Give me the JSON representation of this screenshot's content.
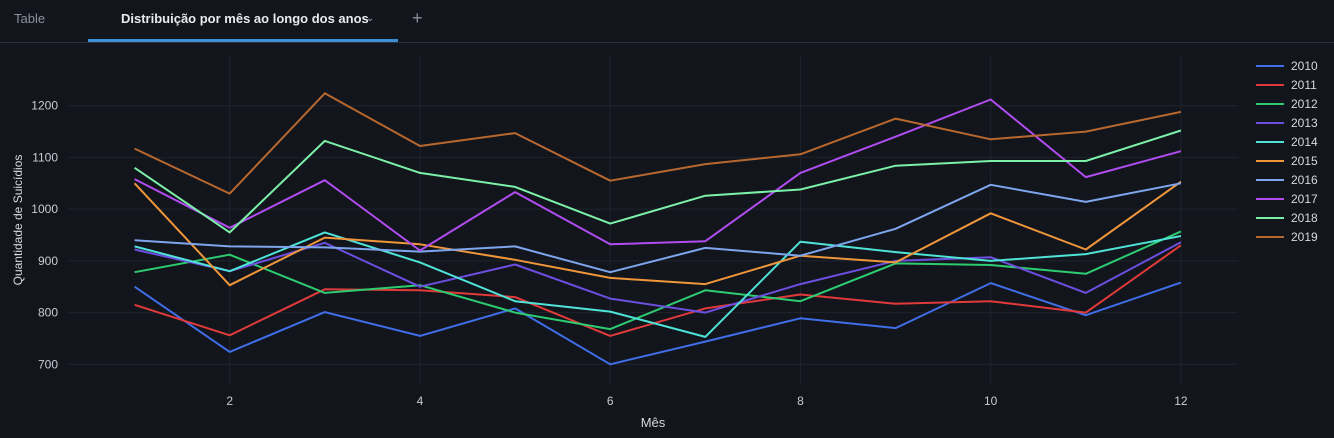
{
  "tabs": {
    "table_label": "Table",
    "active_label": "Distribuição por mês ao longo dos anos",
    "add_label": "+"
  },
  "chart_data": {
    "type": "line",
    "xlabel": "Mês",
    "ylabel": "Quantidade de Suicídios",
    "x": [
      1,
      2,
      3,
      4,
      5,
      6,
      7,
      8,
      9,
      10,
      11,
      12
    ],
    "xticks": [
      2,
      4,
      6,
      8,
      10,
      12
    ],
    "yticks": [
      700,
      800,
      900,
      1000,
      1100,
      1200
    ],
    "xlim": [
      0.3,
      12.6
    ],
    "ylim": [
      660,
      1298
    ],
    "grid": true,
    "legend_position": "top-right",
    "series": [
      {
        "name": "2010",
        "color": "#3f6ee8",
        "values": [
          850,
          724,
          801,
          755,
          808,
          700,
          744,
          789,
          770,
          857,
          795,
          858
        ]
      },
      {
        "name": "2011",
        "color": "#e03a3a",
        "values": [
          815,
          756,
          845,
          843,
          830,
          755,
          808,
          835,
          817,
          822,
          800,
          930
        ]
      },
      {
        "name": "2012",
        "color": "#2ecc71",
        "values": [
          878,
          912,
          838,
          853,
          800,
          768,
          843,
          822,
          895,
          892,
          875,
          957
        ]
      },
      {
        "name": "2013",
        "color": "#6c4fe0",
        "values": [
          922,
          880,
          935,
          850,
          893,
          827,
          800,
          855,
          900,
          907,
          838,
          936
        ]
      },
      {
        "name": "2014",
        "color": "#4fe3d8",
        "values": [
          928,
          880,
          955,
          897,
          822,
          802,
          753,
          937,
          917,
          900,
          913,
          948
        ]
      },
      {
        "name": "2015",
        "color": "#f0963a",
        "values": [
          1050,
          853,
          945,
          932,
          902,
          867,
          855,
          910,
          897,
          992,
          922,
          1053
        ]
      },
      {
        "name": "2016",
        "color": "#7ea6ee",
        "values": [
          940,
          928,
          926,
          918,
          928,
          878,
          925,
          910,
          962,
          1047,
          1014,
          1050
        ]
      },
      {
        "name": "2017",
        "color": "#b04cf0",
        "values": [
          1058,
          964,
          1056,
          920,
          1033,
          932,
          938,
          1070,
          1140,
          1212,
          1062,
          1112
        ]
      },
      {
        "name": "2018",
        "color": "#7cf0a8",
        "values": [
          1080,
          955,
          1132,
          1070,
          1043,
          972,
          1026,
          1038,
          1084,
          1093,
          1093,
          1152
        ]
      },
      {
        "name": "2019",
        "color": "#b8682e",
        "values": [
          1117,
          1030,
          1224,
          1122,
          1147,
          1055,
          1087,
          1106,
          1175,
          1135,
          1150,
          1188
        ]
      }
    ]
  }
}
